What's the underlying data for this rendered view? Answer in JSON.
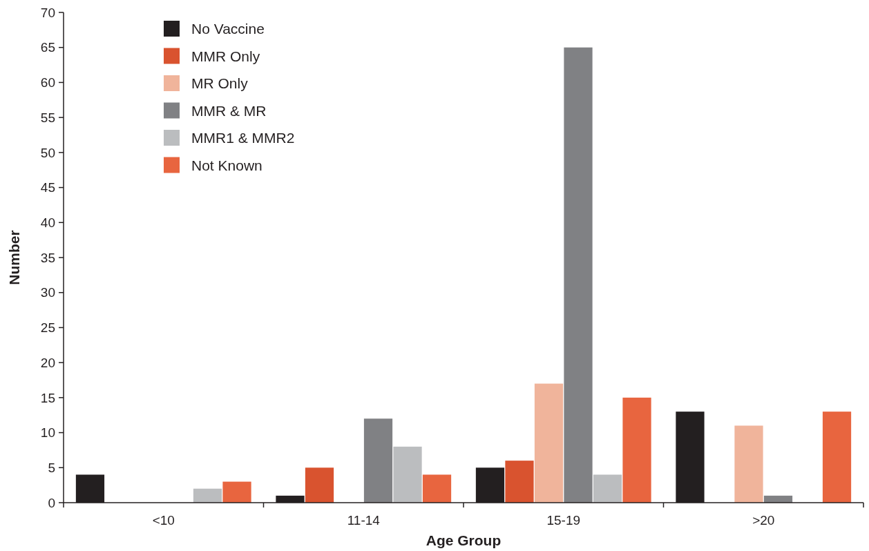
{
  "chart_data": {
    "type": "bar",
    "xlabel": "Age Group",
    "ylabel": "Number",
    "categories": [
      "<10",
      "11-14",
      "15-19",
      ">20"
    ],
    "series": [
      {
        "name": "No Vaccine",
        "color": "#231f20",
        "values": [
          4,
          1,
          5,
          13
        ]
      },
      {
        "name": "MMR Only",
        "color": "#d9532f",
        "values": [
          null,
          5,
          6,
          null
        ]
      },
      {
        "name": "MR Only",
        "color": "#f0b49b",
        "values": [
          null,
          null,
          17,
          11
        ]
      },
      {
        "name": "MMR & MR",
        "color": "#808184",
        "values": [
          null,
          12,
          65,
          1
        ]
      },
      {
        "name": "MMR1 & MMR2",
        "color": "#bbbdbf",
        "values": [
          2,
          8,
          4,
          null
        ]
      },
      {
        "name": "Not Known",
        "color": "#e8653f",
        "values": [
          3,
          4,
          15,
          13
        ]
      }
    ],
    "ylim": [
      0,
      70
    ],
    "yticks": [
      0,
      5,
      10,
      15,
      20,
      25,
      30,
      35,
      40,
      45,
      50,
      55,
      60,
      65,
      70
    ],
    "grid": false,
    "legend": "top left"
  }
}
